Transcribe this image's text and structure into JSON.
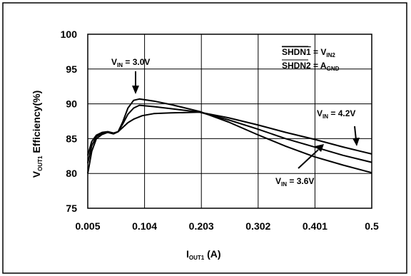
{
  "chart_data": {
    "type": "line",
    "title": "",
    "xlabel": {
      "main": "I",
      "sub": "OUT1",
      "rest": " (A)"
    },
    "ylabel": {
      "main": "V",
      "sub": "OUT1",
      "rest": " Efficiency(%)"
    },
    "xlim": [
      0.005,
      0.5
    ],
    "ylim": [
      75,
      100
    ],
    "x_ticks": [
      0.005,
      0.104,
      0.203,
      0.302,
      0.401,
      0.5
    ],
    "x_tick_labels": [
      "0.005",
      "0.104",
      "0.203",
      "0.302",
      "0.401",
      "0.5"
    ],
    "y_ticks": [
      75,
      80,
      85,
      90,
      95,
      100
    ],
    "y_tick_labels": [
      "75",
      "80",
      "85",
      "90",
      "95",
      "100"
    ],
    "grid": true,
    "series": [
      {
        "name": "VIN = 3.0V",
        "points": [
          [
            0.005,
            80.0
          ],
          [
            0.012,
            83.2
          ],
          [
            0.02,
            85.0
          ],
          [
            0.03,
            85.6
          ],
          [
            0.04,
            85.9
          ],
          [
            0.05,
            85.7
          ],
          [
            0.058,
            86.0
          ],
          [
            0.066,
            87.4
          ],
          [
            0.075,
            89.4
          ],
          [
            0.085,
            90.5
          ],
          [
            0.095,
            90.7
          ],
          [
            0.12,
            90.4
          ],
          [
            0.15,
            89.9
          ],
          [
            0.2,
            88.9
          ],
          [
            0.25,
            87.4
          ],
          [
            0.3,
            85.6
          ],
          [
            0.35,
            83.9
          ],
          [
            0.4,
            82.4
          ],
          [
            0.45,
            81.2
          ],
          [
            0.5,
            80.1
          ]
        ]
      },
      {
        "name": "VIN = 3.6V",
        "points": [
          [
            0.005,
            81.5
          ],
          [
            0.012,
            84.0
          ],
          [
            0.02,
            85.3
          ],
          [
            0.03,
            85.8
          ],
          [
            0.04,
            85.9
          ],
          [
            0.05,
            85.7
          ],
          [
            0.058,
            86.0
          ],
          [
            0.066,
            87.1
          ],
          [
            0.075,
            88.5
          ],
          [
            0.085,
            89.4
          ],
          [
            0.095,
            89.8
          ],
          [
            0.12,
            89.6
          ],
          [
            0.15,
            89.3
          ],
          [
            0.2,
            88.8
          ],
          [
            0.25,
            87.7
          ],
          [
            0.3,
            86.4
          ],
          [
            0.35,
            85.0
          ],
          [
            0.4,
            83.8
          ],
          [
            0.45,
            82.6
          ],
          [
            0.5,
            81.6
          ]
        ]
      },
      {
        "name": "VIN = 4.2V",
        "points": [
          [
            0.005,
            82.6
          ],
          [
            0.012,
            84.6
          ],
          [
            0.02,
            85.5
          ],
          [
            0.03,
            85.9
          ],
          [
            0.04,
            86.0
          ],
          [
            0.05,
            85.8
          ],
          [
            0.058,
            86.0
          ],
          [
            0.066,
            86.6
          ],
          [
            0.075,
            87.3
          ],
          [
            0.085,
            87.8
          ],
          [
            0.1,
            88.3
          ],
          [
            0.12,
            88.6
          ],
          [
            0.15,
            88.7
          ],
          [
            0.2,
            88.8
          ],
          [
            0.25,
            88.0
          ],
          [
            0.3,
            87.0
          ],
          [
            0.35,
            85.9
          ],
          [
            0.4,
            84.9
          ],
          [
            0.45,
            83.8
          ],
          [
            0.5,
            82.8
          ]
        ]
      }
    ],
    "annotations": [
      {
        "main": "V",
        "sub": "IN",
        "rest": " = 3.0V"
      },
      {
        "main": "V",
        "sub": "IN",
        "rest": " = 4.2V"
      },
      {
        "main": "V",
        "sub": "IN",
        "rest": " = 3.6V"
      }
    ],
    "legend_note": [
      {
        "bar": "SHDN1",
        "rest": " = V",
        "sub": "IN2"
      },
      {
        "bar": "SHDN2",
        "rest": " = A",
        "sub": "GND"
      }
    ]
  }
}
